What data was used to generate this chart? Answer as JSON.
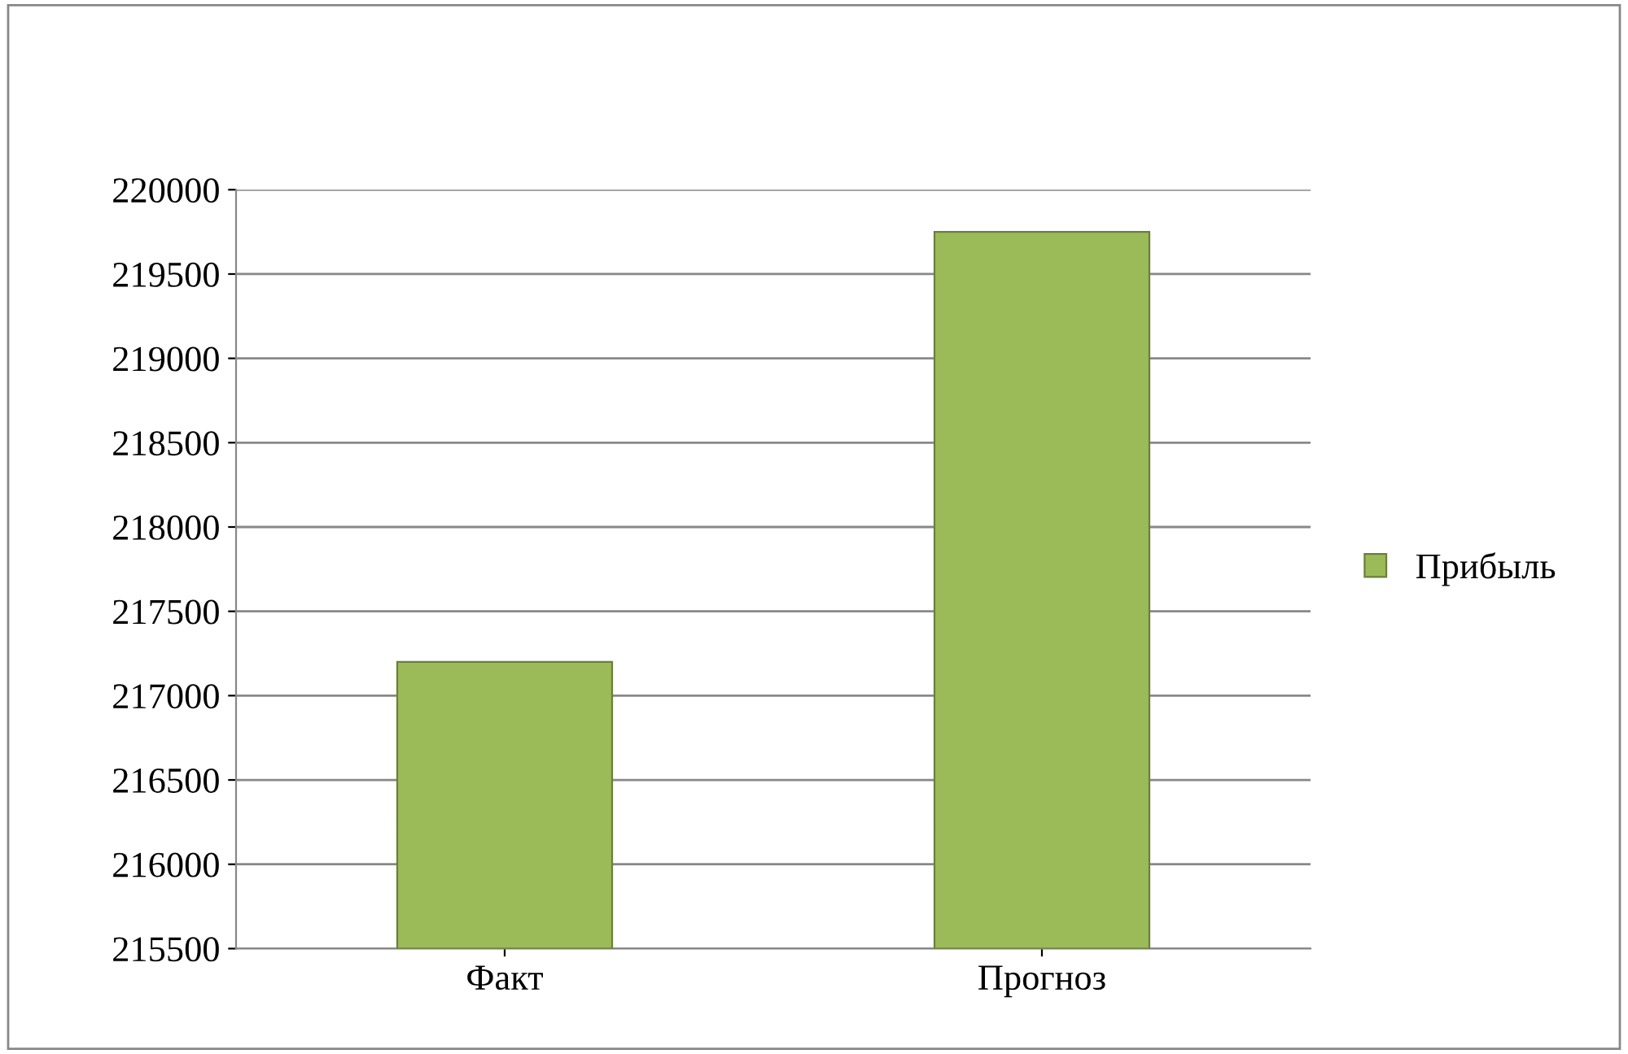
{
  "chart_data": {
    "type": "bar",
    "categories": [
      "Факт",
      "Прогноз"
    ],
    "series": [
      {
        "name": "Прибыль",
        "color": "#9bbb59",
        "values": [
          217200,
          219750
        ]
      }
    ],
    "ylim": [
      215500,
      220000
    ],
    "yticks": [
      215500,
      216000,
      216500,
      217000,
      217500,
      218000,
      218500,
      219000,
      219500,
      220000
    ],
    "grid": "y",
    "legend": "right"
  }
}
